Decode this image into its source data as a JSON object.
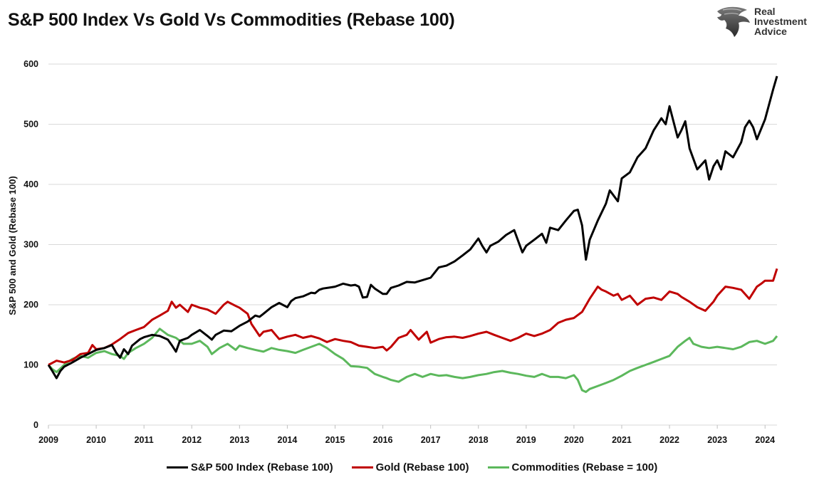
{
  "title": "S&P 500 Index Vs Gold Vs Commodities (Rebase 100)",
  "logo": {
    "line1": "Real",
    "line2": "Investment",
    "line3": "Advice"
  },
  "chart_data": {
    "type": "line",
    "title": "S&P 500 Index Vs Gold Vs Commodities (Rebase 100)",
    "xlabel": "",
    "ylabel": "S&P 500 and Gold (Rebase 100)",
    "ylim": [
      0,
      600
    ],
    "xlim": [
      2009.0,
      2024.25
    ],
    "yticks": [
      0,
      100,
      200,
      300,
      400,
      500,
      600
    ],
    "xticks": [
      2009,
      2010,
      2011,
      2012,
      2013,
      2014,
      2015,
      2016,
      2017,
      2018,
      2019,
      2020,
      2021,
      2022,
      2023,
      2024
    ],
    "grid": "horizontal",
    "legend_position": "bottom",
    "series": [
      {
        "name": "S&P 500 Index (Rebase 100)",
        "color": "#000000",
        "x": [
          2009.0,
          2009.08,
          2009.17,
          2009.25,
          2009.33,
          2009.5,
          2009.67,
          2009.83,
          2010.0,
          2010.17,
          2010.33,
          2010.42,
          2010.5,
          2010.58,
          2010.67,
          2010.75,
          2010.92,
          2011.0,
          2011.17,
          2011.33,
          2011.5,
          2011.58,
          2011.67,
          2011.75,
          2011.92,
          2012.0,
          2012.17,
          2012.33,
          2012.42,
          2012.5,
          2012.67,
          2012.83,
          2013.0,
          2013.17,
          2013.33,
          2013.42,
          2013.5,
          2013.67,
          2013.83,
          2014.0,
          2014.08,
          2014.17,
          2014.33,
          2014.5,
          2014.58,
          2014.67,
          2014.75,
          2014.92,
          2015.0,
          2015.17,
          2015.33,
          2015.42,
          2015.5,
          2015.58,
          2015.67,
          2015.75,
          2015.83,
          2016.0,
          2016.08,
          2016.17,
          2016.33,
          2016.5,
          2016.67,
          2016.83,
          2017.0,
          2017.17,
          2017.33,
          2017.5,
          2017.67,
          2017.83,
          2018.0,
          2018.08,
          2018.17,
          2018.25,
          2018.42,
          2018.58,
          2018.75,
          2018.92,
          2019.0,
          2019.17,
          2019.33,
          2019.42,
          2019.5,
          2019.67,
          2019.83,
          2020.0,
          2020.08,
          2020.17,
          2020.25,
          2020.33,
          2020.5,
          2020.67,
          2020.75,
          2020.92,
          2021.0,
          2021.17,
          2021.33,
          2021.5,
          2021.67,
          2021.83,
          2021.92,
          2022.0,
          2022.17,
          2022.25,
          2022.33,
          2022.42,
          2022.58,
          2022.75,
          2022.83,
          2022.92,
          2023.0,
          2023.08,
          2023.17,
          2023.33,
          2023.5,
          2023.58,
          2023.67,
          2023.75,
          2023.83,
          2024.0,
          2024.17,
          2024.25
        ],
        "y": [
          100,
          90,
          78,
          90,
          97,
          104,
          112,
          118,
          125,
          128,
          133,
          120,
          112,
          126,
          118,
          132,
          143,
          146,
          150,
          148,
          142,
          133,
          122,
          140,
          145,
          150,
          158,
          148,
          142,
          150,
          157,
          156,
          165,
          172,
          182,
          180,
          185,
          196,
          203,
          196,
          206,
          211,
          214,
          220,
          219,
          225,
          227,
          229,
          230,
          235,
          232,
          233,
          230,
          212,
          213,
          233,
          227,
          218,
          218,
          228,
          232,
          238,
          237,
          241,
          245,
          262,
          265,
          272,
          282,
          292,
          310,
          298,
          287,
          298,
          305,
          316,
          324,
          287,
          298,
          308,
          318,
          303,
          328,
          324,
          340,
          356,
          358,
          332,
          275,
          308,
          340,
          368,
          390,
          372,
          410,
          420,
          445,
          460,
          490,
          510,
          500,
          530,
          478,
          490,
          505,
          460,
          425,
          440,
          408,
          430,
          440,
          425,
          455,
          445,
          470,
          495,
          506,
          495,
          475,
          508,
          558,
          580
        ]
      },
      {
        "name": "Gold (Rebase  100)",
        "color": "#c00000",
        "x": [
          2009.0,
          2009.17,
          2009.33,
          2009.5,
          2009.67,
          2009.83,
          2009.92,
          2010.0,
          2010.17,
          2010.33,
          2010.5,
          2010.67,
          2010.83,
          2011.0,
          2011.17,
          2011.33,
          2011.5,
          2011.58,
          2011.67,
          2011.75,
          2011.92,
          2012.0,
          2012.17,
          2012.33,
          2012.5,
          2012.67,
          2012.75,
          2012.92,
          2013.0,
          2013.17,
          2013.25,
          2013.42,
          2013.5,
          2013.67,
          2013.83,
          2014.0,
          2014.17,
          2014.33,
          2014.5,
          2014.67,
          2014.83,
          2015.0,
          2015.17,
          2015.33,
          2015.5,
          2015.67,
          2015.83,
          2016.0,
          2016.08,
          2016.17,
          2016.33,
          2016.5,
          2016.58,
          2016.75,
          2016.92,
          2017.0,
          2017.17,
          2017.33,
          2017.5,
          2017.67,
          2017.83,
          2018.0,
          2018.17,
          2018.33,
          2018.5,
          2018.67,
          2018.83,
          2019.0,
          2019.17,
          2019.33,
          2019.5,
          2019.67,
          2019.83,
          2020.0,
          2020.17,
          2020.33,
          2020.5,
          2020.58,
          2020.67,
          2020.83,
          2020.92,
          2021.0,
          2021.17,
          2021.33,
          2021.5,
          2021.67,
          2021.83,
          2022.0,
          2022.17,
          2022.25,
          2022.42,
          2022.58,
          2022.75,
          2022.92,
          2023.0,
          2023.17,
          2023.33,
          2023.5,
          2023.67,
          2023.83,
          2023.92,
          2024.0,
          2024.17,
          2024.25
        ],
        "y": [
          100,
          107,
          104,
          108,
          118,
          120,
          133,
          126,
          128,
          134,
          143,
          153,
          158,
          163,
          175,
          182,
          190,
          205,
          195,
          200,
          188,
          200,
          195,
          192,
          185,
          200,
          205,
          198,
          195,
          185,
          168,
          148,
          155,
          158,
          143,
          147,
          150,
          145,
          148,
          144,
          138,
          143,
          140,
          138,
          132,
          130,
          128,
          130,
          124,
          130,
          145,
          150,
          158,
          142,
          155,
          137,
          143,
          146,
          147,
          145,
          148,
          152,
          155,
          150,
          145,
          140,
          145,
          152,
          148,
          152,
          158,
          170,
          175,
          178,
          188,
          210,
          230,
          225,
          222,
          215,
          218,
          208,
          215,
          200,
          210,
          212,
          208,
          222,
          218,
          213,
          205,
          196,
          190,
          205,
          215,
          230,
          228,
          225,
          210,
          230,
          235,
          240,
          240,
          260
        ]
      },
      {
        "name": "Commodities (Rebase = 100)",
        "color": "#5cb85c",
        "x": [
          2009.0,
          2009.08,
          2009.17,
          2009.33,
          2009.5,
          2009.67,
          2009.83,
          2010.0,
          2010.17,
          2010.33,
          2010.5,
          2010.58,
          2010.67,
          2010.83,
          2011.0,
          2011.17,
          2011.33,
          2011.5,
          2011.67,
          2011.75,
          2011.83,
          2012.0,
          2012.17,
          2012.33,
          2012.42,
          2012.58,
          2012.75,
          2012.92,
          2013.0,
          2013.17,
          2013.33,
          2013.5,
          2013.67,
          2013.83,
          2014.0,
          2014.17,
          2014.33,
          2014.5,
          2014.67,
          2014.83,
          2015.0,
          2015.17,
          2015.33,
          2015.5,
          2015.67,
          2015.83,
          2016.0,
          2016.08,
          2016.17,
          2016.33,
          2016.5,
          2016.67,
          2016.83,
          2017.0,
          2017.17,
          2017.33,
          2017.5,
          2017.67,
          2017.83,
          2018.0,
          2018.17,
          2018.33,
          2018.5,
          2018.67,
          2018.83,
          2019.0,
          2019.17,
          2019.33,
          2019.5,
          2019.67,
          2019.83,
          2020.0,
          2020.08,
          2020.17,
          2020.25,
          2020.33,
          2020.5,
          2020.67,
          2020.83,
          2021.0,
          2021.17,
          2021.33,
          2021.5,
          2021.67,
          2021.83,
          2022.0,
          2022.17,
          2022.33,
          2022.42,
          2022.5,
          2022.67,
          2022.83,
          2023.0,
          2023.17,
          2023.33,
          2023.5,
          2023.67,
          2023.83,
          2024.0,
          2024.17,
          2024.25
        ],
        "y": [
          100,
          93,
          88,
          100,
          110,
          115,
          112,
          120,
          123,
          118,
          115,
          110,
          120,
          128,
          135,
          145,
          160,
          150,
          145,
          140,
          135,
          135,
          140,
          130,
          118,
          128,
          135,
          125,
          132,
          128,
          125,
          122,
          128,
          125,
          123,
          120,
          125,
          130,
          135,
          128,
          118,
          110,
          98,
          97,
          95,
          85,
          80,
          78,
          75,
          72,
          80,
          85,
          80,
          85,
          82,
          83,
          80,
          78,
          80,
          83,
          85,
          88,
          90,
          87,
          85,
          82,
          80,
          85,
          80,
          80,
          78,
          83,
          75,
          58,
          55,
          60,
          65,
          70,
          75,
          82,
          90,
          95,
          100,
          105,
          110,
          115,
          130,
          140,
          145,
          135,
          130,
          128,
          130,
          128,
          126,
          130,
          138,
          140,
          135,
          140,
          148
        ]
      }
    ]
  }
}
